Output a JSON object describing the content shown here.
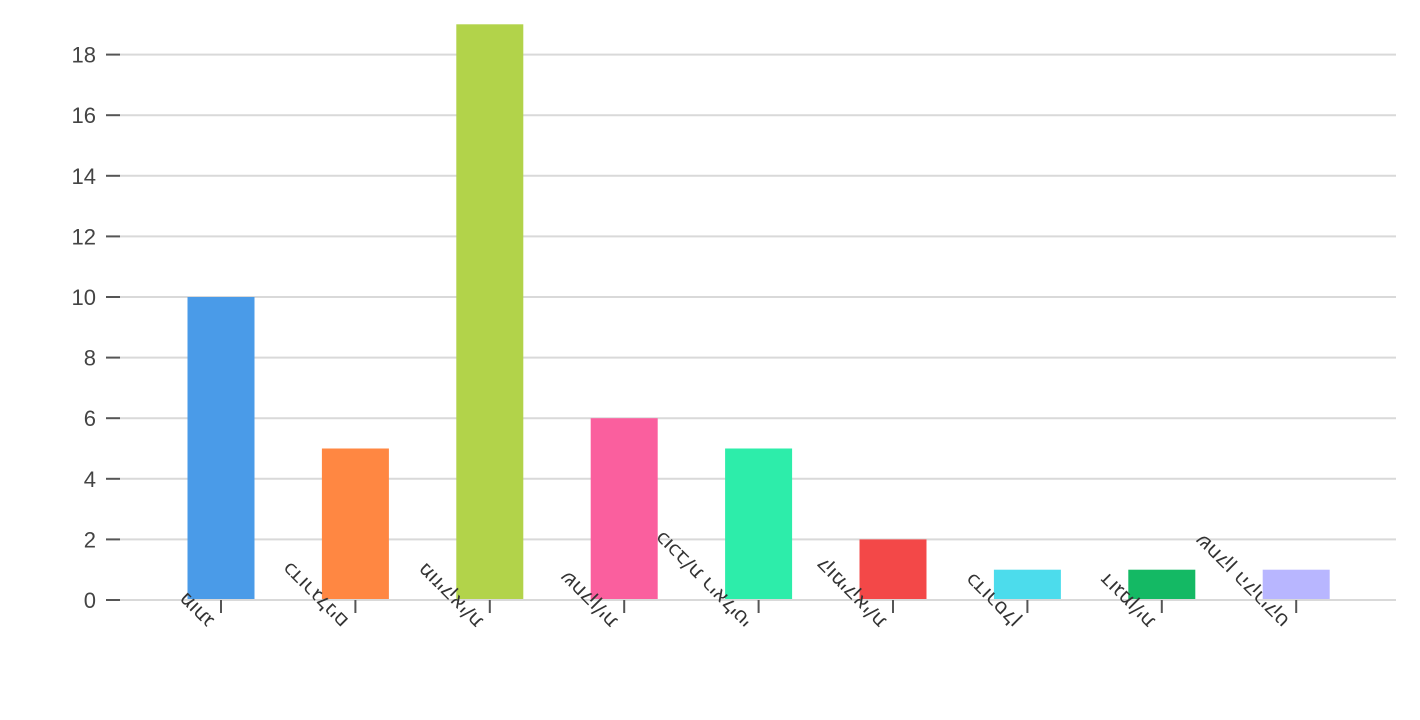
{
  "chart_data": {
    "type": "bar",
    "categories": [
      "מותג",
      "כדורגלנים",
      "מוזיקאי/ת",
      "שחקן/ית",
      "כוכב/ת ריאליטי",
      "קומיקאי/ת",
      "כדורסלן",
      "דוגמן/ית",
      "שחקן הקריקט"
    ],
    "values": [
      10,
      5,
      19,
      6,
      5,
      2,
      1,
      1,
      1
    ],
    "colors": [
      "#4a9be8",
      "#ff8742",
      "#b2d34a",
      "#fa5f9e",
      "#2dedaa",
      "#f34848",
      "#4cdcec",
      "#14b964",
      "#b8b6ff"
    ],
    "yticks": [
      0,
      2,
      4,
      6,
      8,
      10,
      12,
      14,
      16,
      18
    ],
    "ylim": [
      0,
      19
    ],
    "grid": true,
    "title": "",
    "xlabel": "",
    "ylabel": ""
  }
}
